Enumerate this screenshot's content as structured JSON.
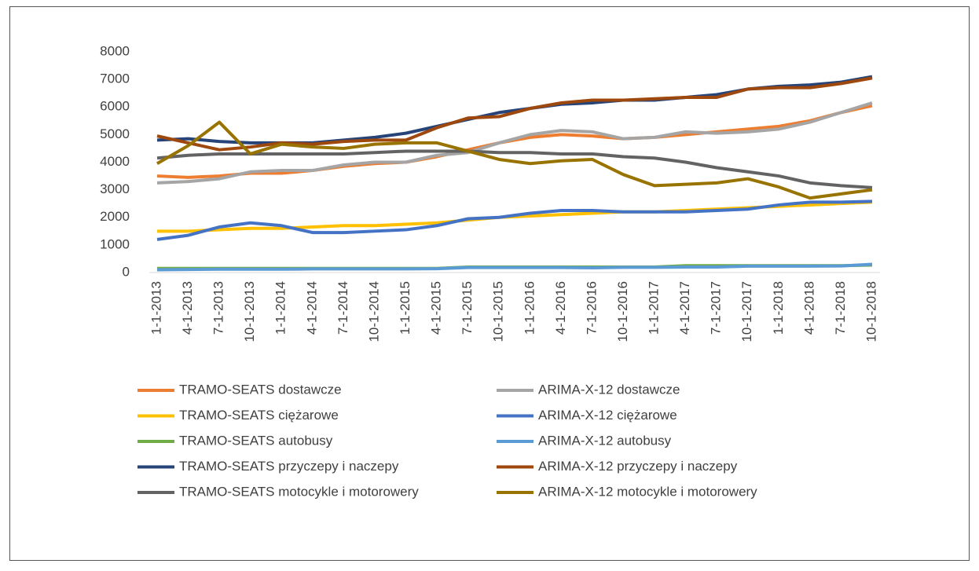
{
  "chart_data": {
    "type": "line",
    "categories": [
      "1-1-2013",
      "4-1-2013",
      "7-1-2013",
      "10-1-2013",
      "1-1-2014",
      "4-1-2014",
      "7-1-2014",
      "10-1-2014",
      "1-1-2015",
      "4-1-2015",
      "7-1-2015",
      "10-1-2015",
      "1-1-2016",
      "4-1-2016",
      "7-1-2016",
      "10-1-2016",
      "1-1-2017",
      "4-1-2017",
      "7-1-2017",
      "10-1-2017",
      "1-1-2018",
      "4-1-2018",
      "7-1-2018",
      "10-1-2018"
    ],
    "series": [
      {
        "name": "TRAMO-SEATS dostawcze",
        "color": "#ED7D31",
        "values": [
          3500,
          3450,
          3500,
          3600,
          3600,
          3700,
          3850,
          3950,
          4000,
          4200,
          4450,
          4700,
          4900,
          5000,
          4950,
          4850,
          4900,
          5000,
          5100,
          5200,
          5300,
          5500,
          5800,
          6050
        ]
      },
      {
        "name": "ARIMA-X-12 dostawcze",
        "color": "#A5A5A5",
        "values": [
          3250,
          3300,
          3400,
          3650,
          3700,
          3700,
          3900,
          4000,
          4000,
          4250,
          4350,
          4700,
          5000,
          5150,
          5100,
          4850,
          4900,
          5100,
          5050,
          5100,
          5200,
          5450,
          5800,
          6150
        ]
      },
      {
        "name": "TRAMO-SEATS ciężarowe",
        "color": "#FFC000",
        "values": [
          1500,
          1500,
          1550,
          1600,
          1600,
          1650,
          1700,
          1700,
          1750,
          1800,
          1900,
          2000,
          2050,
          2100,
          2150,
          2200,
          2200,
          2250,
          2300,
          2350,
          2400,
          2450,
          2500,
          2550
        ]
      },
      {
        "name": "ARIMA-X-12 ciężarowe",
        "color": "#4472C4",
        "values": [
          1200,
          1350,
          1650,
          1800,
          1700,
          1450,
          1450,
          1500,
          1550,
          1700,
          1950,
          2000,
          2150,
          2250,
          2250,
          2200,
          2200,
          2200,
          2250,
          2300,
          2450,
          2550,
          2550,
          2580
        ]
      },
      {
        "name": "TRAMO-SEATS autobusy",
        "color": "#70AD47",
        "values": [
          150,
          150,
          150,
          150,
          150,
          150,
          150,
          150,
          150,
          150,
          200,
          200,
          200,
          200,
          200,
          200,
          200,
          250,
          250,
          250,
          250,
          250,
          250,
          270
        ]
      },
      {
        "name": "ARIMA-X-12 autobusy",
        "color": "#5B9BD5",
        "values": [
          100,
          110,
          120,
          120,
          120,
          130,
          130,
          130,
          130,
          140,
          180,
          180,
          180,
          180,
          170,
          190,
          190,
          200,
          200,
          230,
          230,
          230,
          240,
          300
        ]
      },
      {
        "name": "TRAMO-SEATS przyczepy i naczepy",
        "color": "#264478",
        "values": [
          4800,
          4850,
          4750,
          4700,
          4700,
          4700,
          4800,
          4900,
          5050,
          5300,
          5550,
          5800,
          5950,
          6100,
          6150,
          6250,
          6250,
          6350,
          6450,
          6650,
          6750,
          6800,
          6900,
          7100
        ]
      },
      {
        "name": "ARIMA-X-12 przyczepy i naczepy",
        "color": "#9E480E",
        "values": [
          4950,
          4700,
          4450,
          4550,
          4700,
          4650,
          4750,
          4800,
          4800,
          5250,
          5600,
          5650,
          5950,
          6150,
          6250,
          6250,
          6300,
          6350,
          6350,
          6650,
          6700,
          6700,
          6850,
          7050
        ]
      },
      {
        "name": "TRAMO-SEATS motocykle i motorowery",
        "color": "#636363",
        "values": [
          4150,
          4250,
          4300,
          4300,
          4300,
          4300,
          4300,
          4350,
          4400,
          4400,
          4400,
          4350,
          4350,
          4300,
          4300,
          4200,
          4150,
          4000,
          3800,
          3650,
          3500,
          3250,
          3150,
          3080
        ]
      },
      {
        "name": "ARIMA-X-12 motocykle i motorowery",
        "color": "#997300",
        "values": [
          3950,
          4600,
          5450,
          4300,
          4650,
          4550,
          4500,
          4650,
          4700,
          4700,
          4400,
          4100,
          3950,
          4050,
          4100,
          3550,
          3150,
          3200,
          3250,
          3400,
          3100,
          2700,
          2850,
          3000
        ]
      }
    ],
    "ylim": [
      0,
      8000
    ],
    "yticks": [
      0,
      1000,
      2000,
      3000,
      4000,
      5000,
      6000,
      7000,
      8000
    ]
  }
}
